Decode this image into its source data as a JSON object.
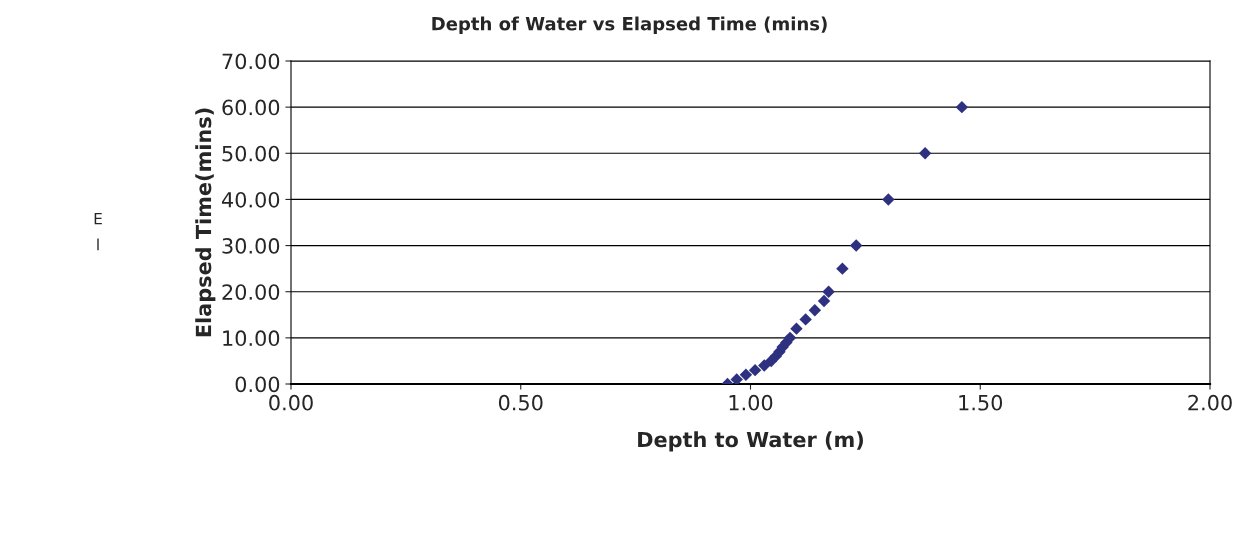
{
  "chart_data": {
    "type": "scatter",
    "title": "Depth of Water vs Elapsed Time (mins)",
    "xlabel": "Depth to Water (m)",
    "ylabel": "Elapsed Time(mins)",
    "annotations": [
      "E",
      "l"
    ],
    "series": [
      {
        "color": "#2e3180",
        "x": [
          0.95,
          0.97,
          0.99,
          1.01,
          1.03,
          1.045,
          1.055,
          1.063,
          1.07,
          1.078,
          1.086,
          1.1,
          1.12,
          1.14,
          1.16,
          1.17,
          1.2,
          1.23,
          1.3,
          1.38,
          1.46
        ],
        "values": [
          0,
          1,
          2,
          3,
          4,
          5,
          6,
          7,
          8,
          9,
          10,
          12,
          14,
          16,
          18,
          20,
          25,
          30,
          40,
          50,
          60
        ]
      }
    ],
    "marker": "diamond",
    "grid": "y",
    "xlim": [
      0,
      2
    ],
    "xticks": [
      {
        "value": 0,
        "label": "0.00"
      },
      {
        "value": 0.5,
        "label": "0.50"
      },
      {
        "value": 1,
        "label": "1.00"
      },
      {
        "value": 1.5,
        "label": "1.50"
      },
      {
        "value": 2,
        "label": "2.00"
      }
    ],
    "ylim": [
      0,
      70
    ],
    "yticks": [
      {
        "value": 0,
        "label": "0.00"
      },
      {
        "value": 10,
        "label": "10.00"
      },
      {
        "value": 20,
        "label": "20.00"
      },
      {
        "value": 30,
        "label": "30.00"
      },
      {
        "value": 40,
        "label": "40.00"
      },
      {
        "value": 50,
        "label": "50.00"
      },
      {
        "value": 60,
        "label": "60.00"
      },
      {
        "value": 70,
        "label": "70.00"
      }
    ]
  }
}
